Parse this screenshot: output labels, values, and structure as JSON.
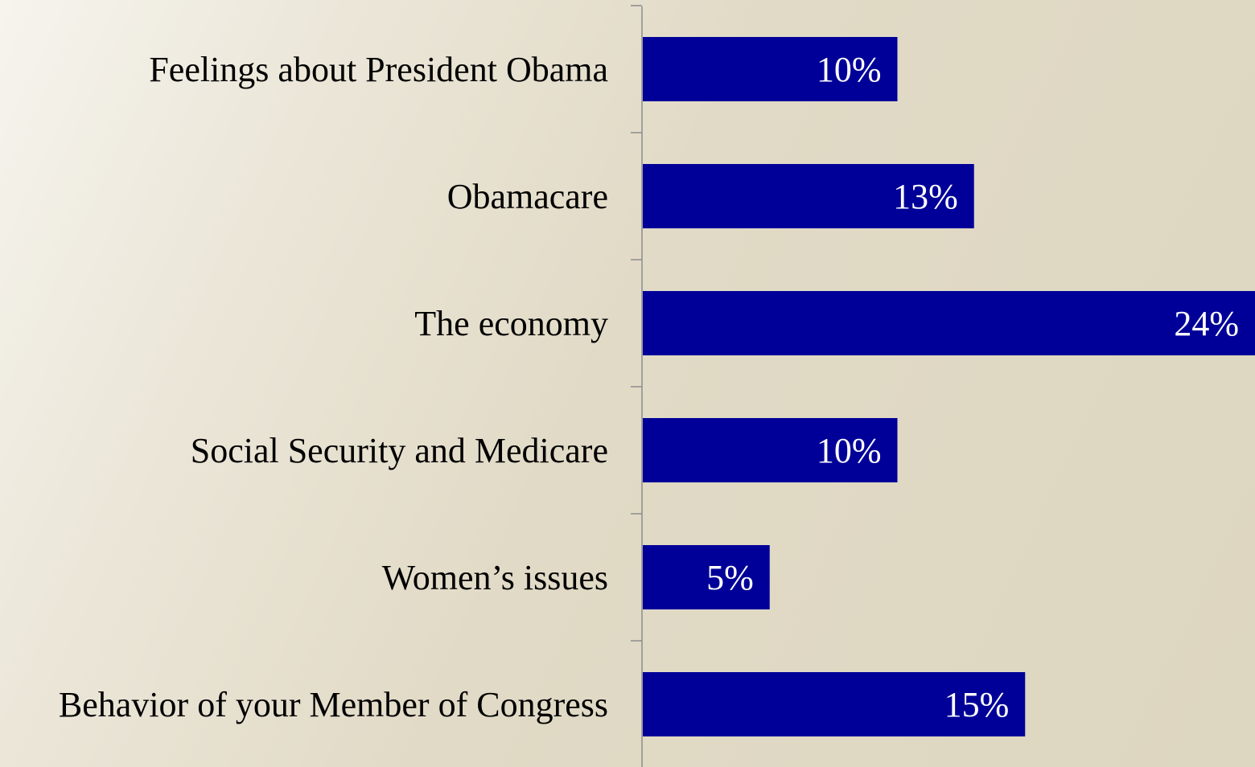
{
  "chart_data": {
    "type": "bar",
    "orientation": "horizontal",
    "title": "",
    "xlabel": "",
    "ylabel": "",
    "categories": [
      "Feelings about President Obama",
      "Obamacare",
      "The economy",
      "Social Security and Medicare",
      "Women’s issues",
      "Behavior of your Member of Congress"
    ],
    "values": [
      10,
      13,
      24,
      10,
      5,
      15
    ],
    "value_labels": [
      "10%",
      "13%",
      "24%",
      "10%",
      "5%",
      "15%"
    ],
    "xlim": [
      0,
      24
    ],
    "grid": false,
    "legend": "none",
    "colors": {
      "bar": "#000099",
      "axis": "#8c8c8c",
      "category_text": "#000000",
      "value_text": "#ffffff"
    }
  }
}
